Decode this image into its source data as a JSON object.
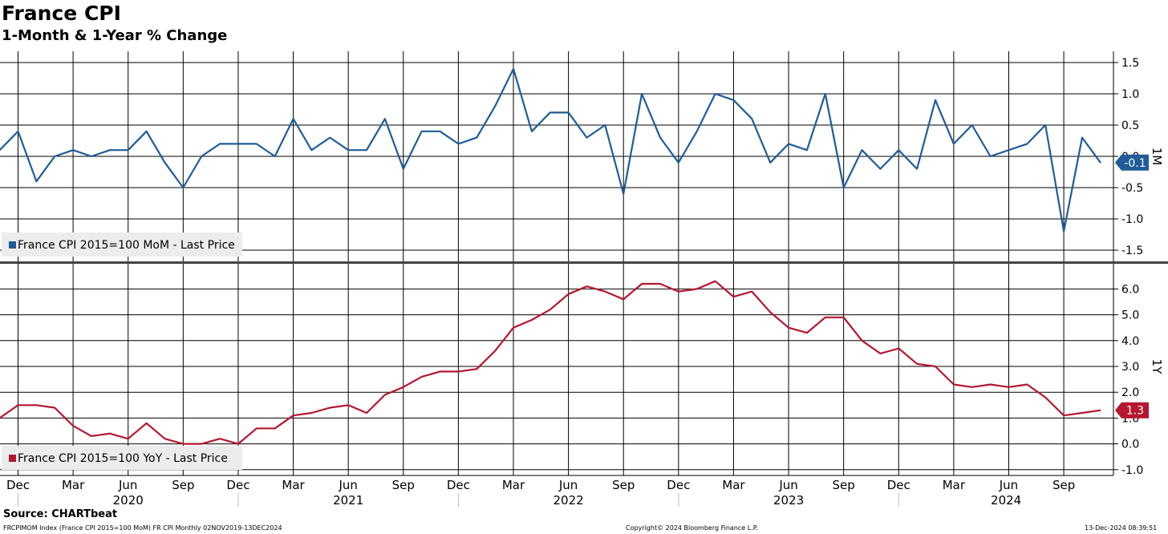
{
  "title": "France CPI",
  "subtitle": "1-Month & 1-Year % Change",
  "source": "Source: CHARTbeat",
  "footer": {
    "left": "FRCPIMOM Index (France CPI 2015=100 MoM) FR CPI  Monthly 02NOV2019-13DEC2024",
    "center": "Copyright© 2024 Bloomberg Finance L.P.",
    "right": "13-Dec-2024 08:39:51"
  },
  "x_month_labels": [
    "Dec",
    "Mar",
    "Jun",
    "Sep",
    "Dec",
    "Mar",
    "Jun",
    "Sep",
    "Dec",
    "Mar",
    "Jun",
    "Sep",
    "Dec",
    "Mar",
    "Jun",
    "Sep",
    "Dec",
    "Mar",
    "Jun",
    "Sep"
  ],
  "x_year_labels": [
    "2020",
    "2021",
    "2022",
    "2023",
    "2024"
  ],
  "chart_data": [
    {
      "type": "line",
      "axis_label": "1M",
      "ylim": [
        -1.5,
        1.5
      ],
      "yticks": [
        1.5,
        1.0,
        0.5,
        0.0,
        -0.5,
        -1.0,
        -1.5
      ],
      "ytick_labels": [
        "1.5",
        "1.0",
        "0.5",
        "0.0",
        "-0.5",
        "-1.0",
        "-1.5"
      ],
      "grid": true,
      "legend_placement": "bottom-left",
      "last_value_label": "-0.1",
      "color": "#1f5c99",
      "x": [
        "2019-11",
        "2019-12",
        "2020-01",
        "2020-02",
        "2020-03",
        "2020-04",
        "2020-05",
        "2020-06",
        "2020-07",
        "2020-08",
        "2020-09",
        "2020-10",
        "2020-11",
        "2020-12",
        "2021-01",
        "2021-02",
        "2021-03",
        "2021-04",
        "2021-05",
        "2021-06",
        "2021-07",
        "2021-08",
        "2021-09",
        "2021-10",
        "2021-11",
        "2021-12",
        "2022-01",
        "2022-02",
        "2022-03",
        "2022-04",
        "2022-05",
        "2022-06",
        "2022-07",
        "2022-08",
        "2022-09",
        "2022-10",
        "2022-11",
        "2022-12",
        "2023-01",
        "2023-02",
        "2023-03",
        "2023-04",
        "2023-05",
        "2023-06",
        "2023-07",
        "2023-08",
        "2023-09",
        "2023-10",
        "2023-11",
        "2023-12",
        "2024-01",
        "2024-02",
        "2024-03",
        "2024-04",
        "2024-05",
        "2024-06",
        "2024-07",
        "2024-08",
        "2024-09",
        "2024-10",
        "2024-11"
      ],
      "series": [
        {
          "name": "France CPI 2015=100 MoM - Last Price",
          "values": [
            0.1,
            0.4,
            -0.4,
            0.0,
            0.1,
            0.0,
            0.1,
            0.1,
            0.4,
            -0.1,
            -0.5,
            0.0,
            0.2,
            0.2,
            0.2,
            0.0,
            0.6,
            0.1,
            0.3,
            0.1,
            0.1,
            0.6,
            -0.2,
            0.4,
            0.4,
            0.2,
            0.3,
            0.8,
            1.4,
            0.4,
            0.7,
            0.7,
            0.3,
            0.5,
            -0.6,
            1.0,
            0.3,
            -0.1,
            0.4,
            1.0,
            0.9,
            0.6,
            -0.1,
            0.2,
            0.1,
            1.0,
            -0.5,
            0.1,
            -0.2,
            0.1,
            -0.2,
            0.9,
            0.2,
            0.5,
            0.0,
            0.1,
            0.2,
            0.5,
            -1.2,
            0.3,
            -0.1
          ]
        }
      ]
    },
    {
      "type": "line",
      "axis_label": "1Y",
      "ylim": [
        -1.0,
        7.0
      ],
      "yticks": [
        6.0,
        5.0,
        4.0,
        3.0,
        2.0,
        1.0,
        0.0,
        -1.0
      ],
      "ytick_labels": [
        "6.0",
        "5.0",
        "4.0",
        "3.0",
        "2.0",
        "1.0",
        "0.0",
        "-1.0"
      ],
      "grid": true,
      "legend_placement": "bottom-left",
      "last_value_label": "1.3",
      "color": "#b5172f",
      "x": [
        "2019-11",
        "2019-12",
        "2020-01",
        "2020-02",
        "2020-03",
        "2020-04",
        "2020-05",
        "2020-06",
        "2020-07",
        "2020-08",
        "2020-09",
        "2020-10",
        "2020-11",
        "2020-12",
        "2021-01",
        "2021-02",
        "2021-03",
        "2021-04",
        "2021-05",
        "2021-06",
        "2021-07",
        "2021-08",
        "2021-09",
        "2021-10",
        "2021-11",
        "2021-12",
        "2022-01",
        "2022-02",
        "2022-03",
        "2022-04",
        "2022-05",
        "2022-06",
        "2022-07",
        "2022-08",
        "2022-09",
        "2022-10",
        "2022-11",
        "2022-12",
        "2023-01",
        "2023-02",
        "2023-03",
        "2023-04",
        "2023-05",
        "2023-06",
        "2023-07",
        "2023-08",
        "2023-09",
        "2023-10",
        "2023-11",
        "2023-12",
        "2024-01",
        "2024-02",
        "2024-03",
        "2024-04",
        "2024-05",
        "2024-06",
        "2024-07",
        "2024-08",
        "2024-09",
        "2024-10",
        "2024-11"
      ],
      "series": [
        {
          "name": "France CPI 2015=100 YoY - Last Price",
          "values": [
            1.0,
            1.5,
            1.5,
            1.4,
            0.7,
            0.3,
            0.4,
            0.2,
            0.8,
            0.2,
            0.0,
            0.0,
            0.2,
            0.0,
            0.6,
            0.6,
            1.1,
            1.2,
            1.4,
            1.5,
            1.2,
            1.9,
            2.2,
            2.6,
            2.8,
            2.8,
            2.9,
            3.6,
            4.5,
            4.8,
            5.2,
            5.8,
            6.1,
            5.9,
            5.6,
            6.2,
            6.2,
            5.9,
            6.0,
            6.3,
            5.7,
            5.9,
            5.1,
            4.5,
            4.3,
            4.9,
            4.9,
            4.0,
            3.5,
            3.7,
            3.1,
            3.0,
            2.3,
            2.2,
            2.3,
            2.2,
            2.3,
            1.8,
            1.1,
            1.2,
            1.3
          ]
        }
      ]
    }
  ]
}
